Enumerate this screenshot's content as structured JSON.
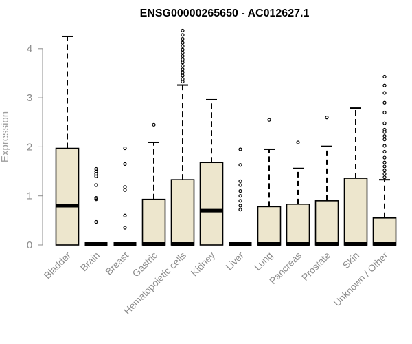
{
  "chart_data": {
    "type": "box",
    "title": "ENSG00000265650 - AC012627.1",
    "xlabel": "",
    "ylabel": "Expression",
    "ylim": [
      0,
      4.4
    ],
    "yticks": [
      "0",
      "1",
      "2",
      "3",
      "4"
    ],
    "box_fill": "#ede6cd",
    "categories": [
      "Bladder",
      "Brain",
      "Breast",
      "Gastric",
      "Hematopoietic cells",
      "Kidney",
      "Liver",
      "Lung",
      "Pancreas",
      "Prostate",
      "Skin",
      "Unknown / Other"
    ],
    "boxes": [
      {
        "min": 0,
        "q1": 0,
        "median": 0.8,
        "q3": 1.97,
        "max": 4.25,
        "outliers": []
      },
      {
        "min": 0,
        "q1": 0,
        "median": 0,
        "q3": 0,
        "max": 0,
        "outliers": [
          0.47,
          0.93,
          0.96,
          1.22,
          1.4,
          1.45,
          1.5,
          1.55
        ]
      },
      {
        "min": 0,
        "q1": 0,
        "median": 0,
        "q3": 0,
        "max": 0,
        "outliers": [
          0.35,
          0.6,
          1.12,
          1.18,
          1.65,
          1.97
        ]
      },
      {
        "min": 0,
        "q1": 0,
        "median": 0,
        "q3": 0.93,
        "max": 2.09,
        "outliers": [
          2.45
        ]
      },
      {
        "min": 0,
        "q1": 0,
        "median": 0,
        "q3": 1.33,
        "max": 3.26,
        "outliers": [
          3.33,
          3.38,
          3.45,
          3.52,
          3.58,
          3.65,
          3.72,
          3.78,
          3.85,
          3.92,
          3.98,
          4.05,
          4.12,
          4.2,
          4.28,
          4.37
        ]
      },
      {
        "min": 0,
        "q1": 0,
        "median": 0.7,
        "q3": 1.68,
        "max": 2.96,
        "outliers": []
      },
      {
        "min": 0,
        "q1": 0,
        "median": 0,
        "q3": 0,
        "max": 0,
        "outliers": [
          0.72,
          0.8,
          0.9,
          1.0,
          1.1,
          1.22,
          1.3,
          1.63,
          1.95
        ]
      },
      {
        "min": 0,
        "q1": 0,
        "median": 0,
        "q3": 0.78,
        "max": 1.95,
        "outliers": [
          2.55
        ]
      },
      {
        "min": 0,
        "q1": 0,
        "median": 0,
        "q3": 0.83,
        "max": 1.56,
        "outliers": [
          2.09
        ]
      },
      {
        "min": 0,
        "q1": 0,
        "median": 0,
        "q3": 0.9,
        "max": 2.01,
        "outliers": [
          2.6
        ]
      },
      {
        "min": 0,
        "q1": 0,
        "median": 0,
        "q3": 1.36,
        "max": 2.79,
        "outliers": []
      },
      {
        "min": 0,
        "q1": 0,
        "median": 0,
        "q3": 0.55,
        "max": 1.33,
        "outliers": [
          1.38,
          1.45,
          1.52,
          1.6,
          1.68,
          1.78,
          1.9,
          2.02,
          2.15,
          2.22,
          2.3,
          2.35,
          2.48,
          2.7,
          2.9,
          3.1,
          3.25,
          3.43
        ]
      }
    ]
  }
}
